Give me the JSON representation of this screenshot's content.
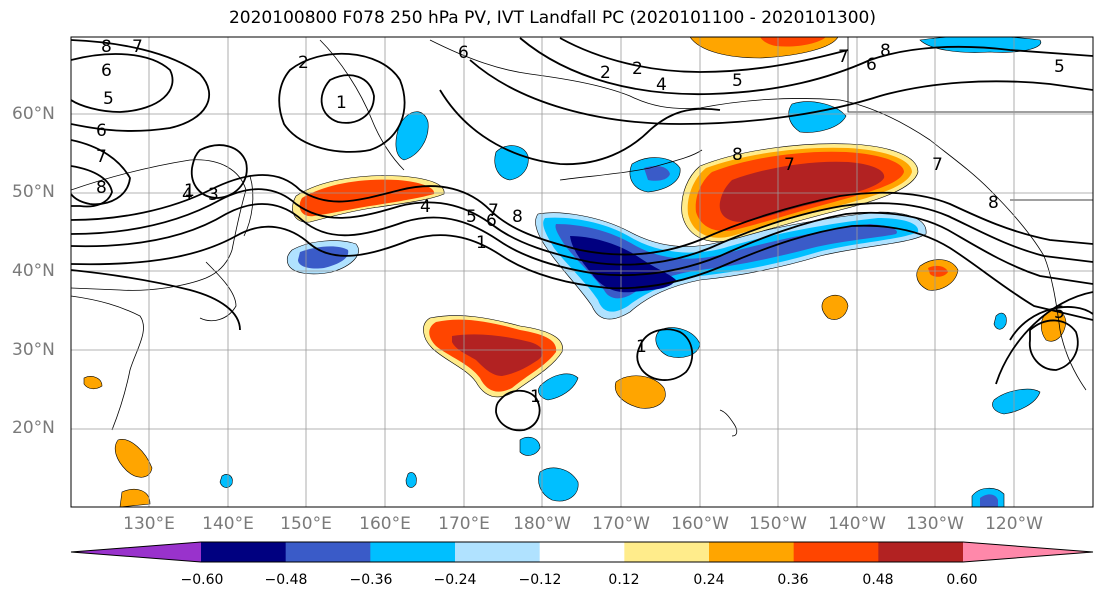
{
  "title": "2020100800 F078 250 hPa PV, IVT Landfall PC (2020101100 - 2020101300)",
  "lat_labels": [
    "60°N",
    "50°N",
    "40°N",
    "30°N",
    "20°N"
  ],
  "lon_labels": [
    "130°E",
    "140°E",
    "150°E",
    "160°E",
    "170°E",
    "180°W",
    "170°W",
    "160°W",
    "150°W",
    "140°W",
    "130°W",
    "120°W"
  ],
  "colorbar": {
    "tick_labels": [
      "−0.60",
      "−0.48",
      "−0.36",
      "−0.24",
      "−0.12",
      "0.12",
      "0.24",
      "0.36",
      "0.48",
      "0.60"
    ],
    "colors": [
      "#9932cc",
      "#000080",
      "#3a5bc8",
      "#00bfff",
      "#b0e2ff",
      "#ffffff",
      "#ffec8b",
      "#ffa500",
      "#ff4500",
      "#b22222",
      "#ff88aa"
    ]
  },
  "contour_labels": [
    "8",
    "7",
    "6",
    "5",
    "6",
    "7",
    "8",
    "4",
    "3",
    "2",
    "1",
    "6",
    "2",
    "4",
    "5",
    "6",
    "7",
    "8",
    "1",
    "4",
    "5",
    "2",
    "7",
    "8",
    "7",
    "8",
    "8",
    "6",
    "5",
    "7",
    "5",
    "1",
    "1",
    "1"
  ]
}
